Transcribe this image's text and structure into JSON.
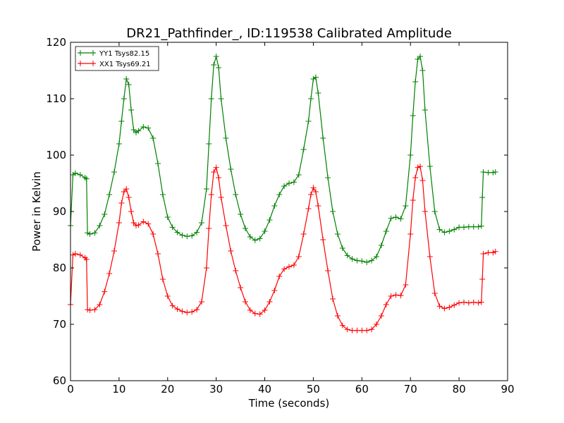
{
  "chart_data": {
    "type": "line",
    "title": "DR21_Pathfinder_, ID:119538 Calibrated Amplitude",
    "xlabel": "Time (seconds)",
    "ylabel": "Power in Kelvin",
    "xlim": [
      0,
      90
    ],
    "ylim": [
      60,
      120
    ],
    "xticks": [
      "0",
      "10",
      "20",
      "30",
      "40",
      "50",
      "60",
      "70",
      "80",
      "90"
    ],
    "yticks": [
      "60",
      "70",
      "80",
      "90",
      "100",
      "110",
      "120"
    ],
    "grid": false,
    "legend_position": "upper-left",
    "marker": "+",
    "series": [
      {
        "name": "YY1 Tsys82.15",
        "color": "#008000",
        "x": [
          0,
          0.5,
          1,
          2,
          3,
          3.3,
          3.5,
          4,
          5,
          6,
          7,
          8,
          9,
          10,
          10.5,
          11,
          11.5,
          12,
          12.5,
          13,
          13.5,
          14,
          15,
          16,
          17,
          18,
          19,
          20,
          21,
          22,
          23,
          24,
          25,
          26,
          27,
          28,
          28.5,
          29,
          29.5,
          30,
          30.5,
          31,
          32,
          33,
          34,
          35,
          36,
          37,
          38,
          39,
          40,
          41,
          42,
          43,
          44,
          45,
          46,
          47,
          48,
          49,
          49.5,
          50,
          50.5,
          51,
          52,
          53,
          54,
          55,
          56,
          57,
          58,
          59,
          60,
          61,
          62,
          63,
          64,
          65,
          66,
          67,
          68,
          69,
          70,
          70.5,
          71,
          71.5,
          72,
          72.5,
          73,
          74,
          75,
          76,
          77,
          78,
          79,
          80,
          81,
          82,
          83,
          84,
          84.6,
          84.8,
          85,
          86,
          87,
          87.5
        ],
        "y": [
          87.5,
          96.5,
          96.8,
          96.5,
          96,
          95.8,
          86.2,
          86,
          86.2,
          87.5,
          89.5,
          93,
          97,
          102,
          106,
          110,
          113.5,
          112.5,
          108,
          104.5,
          104,
          104.3,
          105,
          104.8,
          103,
          98.5,
          93,
          89,
          87.2,
          86.3,
          85.8,
          85.6,
          85.7,
          86.3,
          88,
          94,
          102,
          110,
          116,
          117.5,
          115.5,
          110,
          103,
          97.5,
          93,
          89.5,
          87,
          85.5,
          84.9,
          85.2,
          86.5,
          88.5,
          91,
          93,
          94.5,
          95,
          95.2,
          96.5,
          101,
          106,
          110,
          113.5,
          113.8,
          111,
          103,
          96,
          90,
          86,
          83.5,
          82.2,
          81.6,
          81.3,
          81.2,
          81,
          81.3,
          82,
          84,
          86.5,
          88.8,
          89,
          88.7,
          91,
          100,
          107,
          113,
          117,
          117.5,
          115,
          108,
          98,
          90,
          86.8,
          86.3,
          86.5,
          86.8,
          87.2,
          87.2,
          87.3,
          87.3,
          87.3,
          87.4,
          92.5,
          97,
          96.9,
          96.9,
          97
        ]
      },
      {
        "name": "XX1 Tsys69.21",
        "color": "#ff0000",
        "x": [
          0,
          0.5,
          1,
          2,
          3,
          3.3,
          3.5,
          4,
          5,
          6,
          7,
          8,
          9,
          10,
          10.5,
          11,
          11.5,
          12,
          12.5,
          13,
          13.5,
          14,
          15,
          16,
          17,
          18,
          19,
          20,
          21,
          22,
          23,
          24,
          25,
          26,
          27,
          28,
          28.5,
          29,
          29.5,
          30,
          30.5,
          31,
          32,
          33,
          34,
          35,
          36,
          37,
          38,
          39,
          40,
          41,
          42,
          43,
          44,
          45,
          46,
          47,
          48,
          49,
          49.5,
          50,
          50.5,
          51,
          52,
          53,
          54,
          55,
          56,
          57,
          58,
          59,
          60,
          61,
          62,
          63,
          64,
          65,
          66,
          67,
          68,
          69,
          70,
          70.5,
          71,
          71.5,
          72,
          72.5,
          73,
          74,
          75,
          76,
          77,
          78,
          79,
          80,
          81,
          82,
          83,
          84,
          84.6,
          84.8,
          85,
          86,
          87,
          87.5
        ],
        "y": [
          73.5,
          82.3,
          82.5,
          82.3,
          81.8,
          81.5,
          72.6,
          72.5,
          72.6,
          73.5,
          75.8,
          79,
          83,
          88,
          91.5,
          93.5,
          94,
          92.5,
          90,
          88,
          87.5,
          87.6,
          88.2,
          87.8,
          86,
          82.5,
          78,
          75,
          73.3,
          72.7,
          72.3,
          72.1,
          72.2,
          72.6,
          74,
          80,
          87,
          93,
          97,
          97.8,
          96,
          92.5,
          87.5,
          83,
          79.5,
          76.5,
          74,
          72.5,
          71.9,
          71.8,
          72.5,
          74,
          76,
          78.5,
          79.8,
          80.2,
          80.5,
          82,
          86,
          90.5,
          93,
          94.2,
          93.5,
          91,
          85,
          79.5,
          74.5,
          71.5,
          69.8,
          69.1,
          68.9,
          68.9,
          68.9,
          68.9,
          69.1,
          70,
          71.5,
          73.5,
          75,
          75.2,
          75.1,
          77,
          86,
          92,
          96,
          97.8,
          98,
          95.5,
          90,
          82,
          75.5,
          73.2,
          72.8,
          73,
          73.4,
          73.8,
          73.9,
          73.8,
          73.9,
          73.8,
          73.9,
          78,
          82.5,
          82.7,
          82.7,
          82.9
        ]
      }
    ]
  }
}
